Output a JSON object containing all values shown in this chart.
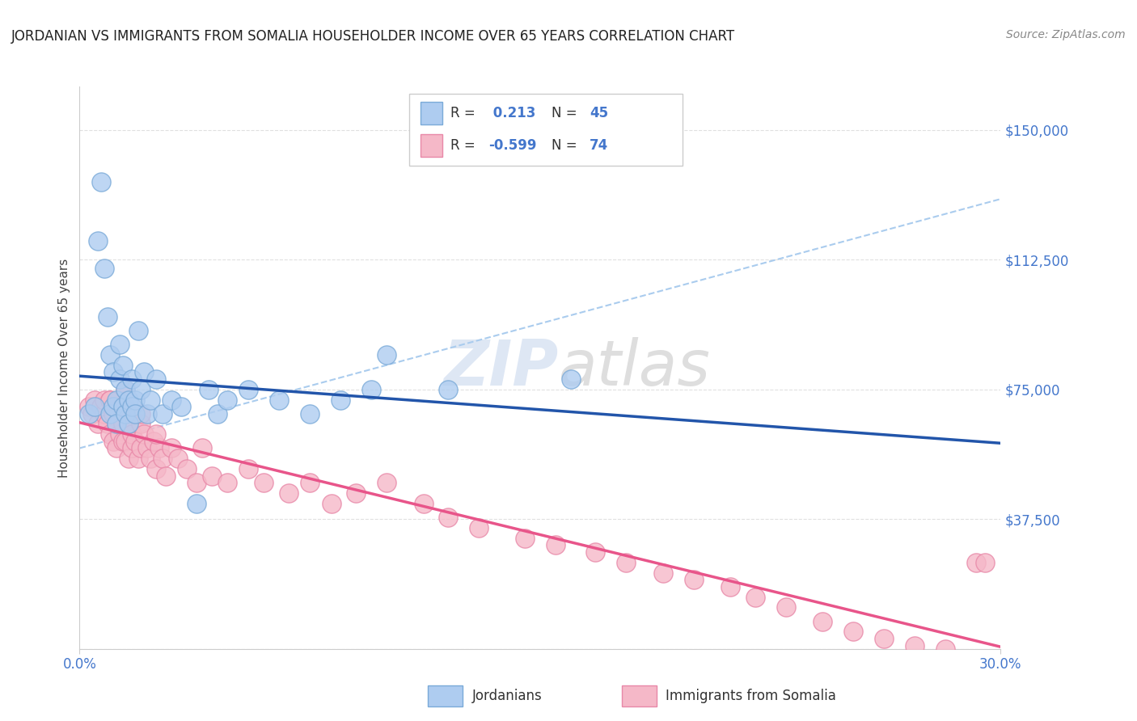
{
  "title": "JORDANIAN VS IMMIGRANTS FROM SOMALIA HOUSEHOLDER INCOME OVER 65 YEARS CORRELATION CHART",
  "source": "Source: ZipAtlas.com",
  "ylabel": "Householder Income Over 65 years",
  "xlim": [
    0.0,
    0.3
  ],
  "ylim": [
    0,
    162500
  ],
  "yticks": [
    0,
    37500,
    75000,
    112500,
    150000
  ],
  "ytick_labels": [
    "",
    "$37,500",
    "$75,000",
    "$112,500",
    "$150,000"
  ],
  "jordan_R": 0.213,
  "jordan_N": 45,
  "somalia_R": -0.599,
  "somalia_N": 74,
  "jordan_color": "#aeccf0",
  "jordan_edge": "#7aaad8",
  "somalia_color": "#f5b8c8",
  "somalia_edge": "#e888a8",
  "jordan_line_color": "#2255aa",
  "somalia_line_color": "#e8558a",
  "dashed_line_color": "#aaccee",
  "background_color": "#ffffff",
  "grid_color": "#e0e0e0",
  "title_color": "#222222",
  "label_color": "#4477cc",
  "jordan_scatter_x": [
    0.003,
    0.005,
    0.006,
    0.007,
    0.008,
    0.009,
    0.01,
    0.01,
    0.011,
    0.011,
    0.012,
    0.012,
    0.013,
    0.013,
    0.014,
    0.014,
    0.015,
    0.015,
    0.016,
    0.016,
    0.017,
    0.017,
    0.018,
    0.018,
    0.019,
    0.02,
    0.021,
    0.022,
    0.023,
    0.025,
    0.027,
    0.03,
    0.033,
    0.038,
    0.042,
    0.045,
    0.048,
    0.055,
    0.065,
    0.075,
    0.085,
    0.095,
    0.1,
    0.12,
    0.16
  ],
  "jordan_scatter_y": [
    68000,
    70000,
    118000,
    135000,
    110000,
    96000,
    68000,
    85000,
    70000,
    80000,
    72000,
    65000,
    78000,
    88000,
    70000,
    82000,
    68000,
    75000,
    72000,
    65000,
    70000,
    78000,
    72000,
    68000,
    92000,
    75000,
    80000,
    68000,
    72000,
    78000,
    68000,
    72000,
    70000,
    42000,
    75000,
    68000,
    72000,
    75000,
    72000,
    68000,
    72000,
    75000,
    85000,
    75000,
    78000
  ],
  "somalia_scatter_x": [
    0.003,
    0.004,
    0.005,
    0.006,
    0.007,
    0.008,
    0.008,
    0.009,
    0.01,
    0.01,
    0.011,
    0.011,
    0.012,
    0.012,
    0.013,
    0.013,
    0.014,
    0.014,
    0.015,
    0.015,
    0.016,
    0.016,
    0.017,
    0.017,
    0.018,
    0.018,
    0.019,
    0.02,
    0.02,
    0.021,
    0.022,
    0.023,
    0.024,
    0.025,
    0.026,
    0.027,
    0.028,
    0.03,
    0.032,
    0.035,
    0.038,
    0.04,
    0.043,
    0.048,
    0.055,
    0.06,
    0.068,
    0.075,
    0.082,
    0.09,
    0.1,
    0.112,
    0.12,
    0.13,
    0.145,
    0.155,
    0.168,
    0.178,
    0.19,
    0.2,
    0.212,
    0.22,
    0.23,
    0.242,
    0.252,
    0.262,
    0.272,
    0.282,
    0.292,
    0.01,
    0.015,
    0.02,
    0.025,
    0.295
  ],
  "somalia_scatter_y": [
    70000,
    68000,
    72000,
    65000,
    70000,
    68000,
    72000,
    65000,
    72000,
    62000,
    60000,
    68000,
    58000,
    65000,
    62000,
    72000,
    60000,
    65000,
    60000,
    70000,
    55000,
    65000,
    58000,
    62000,
    60000,
    68000,
    55000,
    58000,
    65000,
    62000,
    58000,
    55000,
    60000,
    52000,
    58000,
    55000,
    50000,
    58000,
    55000,
    52000,
    48000,
    58000,
    50000,
    48000,
    52000,
    48000,
    45000,
    48000,
    42000,
    45000,
    48000,
    42000,
    38000,
    35000,
    32000,
    30000,
    28000,
    25000,
    22000,
    20000,
    18000,
    15000,
    12000,
    8000,
    5000,
    3000,
    1000,
    0,
    25000,
    72000,
    75000,
    68000,
    62000,
    25000
  ]
}
